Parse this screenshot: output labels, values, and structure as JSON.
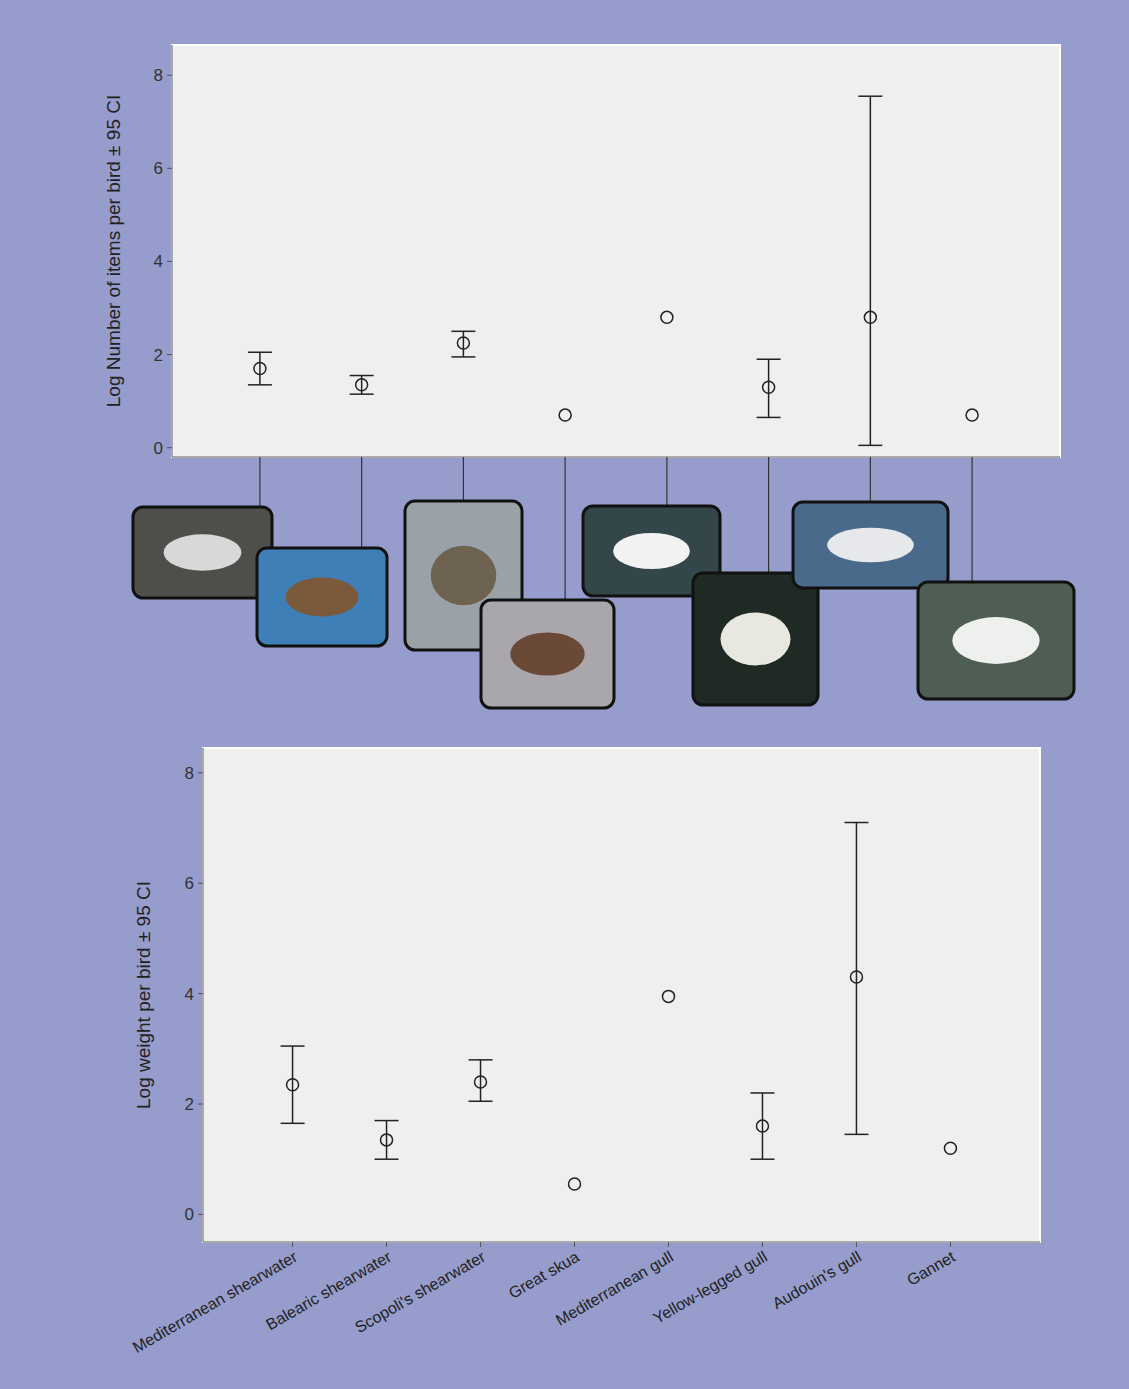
{
  "chart_data": [
    {
      "type": "scatter",
      "y_label": "Log Number of items per bird ± 95 CI",
      "categories": [
        null,
        null,
        null,
        null,
        null,
        null,
        null,
        null
      ],
      "values": [
        1.7,
        1.35,
        2.25,
        0.7,
        2.8,
        1.3,
        2.8,
        0.7
      ],
      "ci_low": [
        1.35,
        1.15,
        1.95,
        null,
        null,
        0.65,
        0.05,
        null
      ],
      "ci_high": [
        2.05,
        1.55,
        2.5,
        null,
        null,
        1.9,
        7.55,
        null
      ],
      "ylim": [
        -0.2,
        8.65
      ],
      "yticks": [
        0,
        2,
        4,
        6,
        8
      ],
      "grid": false,
      "marker": "circle",
      "tick_labels": "y"
    },
    {
      "type": "scatter",
      "y_label": "Log weight per bird ± 95 CI",
      "categories": [
        "Mediterranean shearwater",
        "Balearic shearwater",
        "Scopoli's shearwater",
        "Great skua",
        "Mediterranean gull",
        "Yellow-legged gull",
        "Audouin's gull",
        "Gannet"
      ],
      "values": [
        2.35,
        1.35,
        2.4,
        0.55,
        3.95,
        1.6,
        4.3,
        1.2
      ],
      "ci_low": [
        1.65,
        1.0,
        2.05,
        null,
        null,
        1.0,
        1.45,
        null
      ],
      "ci_high": [
        3.05,
        1.7,
        2.8,
        null,
        null,
        2.2,
        7.1,
        null
      ],
      "ylim": [
        -0.5,
        8.45
      ],
      "yticks": [
        0,
        2,
        4,
        6,
        8
      ],
      "grid": false,
      "marker": "circle"
    }
  ]
}
